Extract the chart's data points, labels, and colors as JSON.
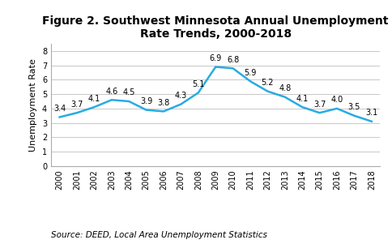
{
  "title": "Figure 2. Southwest Minnesota Annual Unemployment\nRate Trends, 2000-2018",
  "ylabel": "Unemployment Rate",
  "source": "Source: DEED, Local Area Unemployment Statistics",
  "years": [
    2000,
    2001,
    2002,
    2003,
    2004,
    2005,
    2006,
    2007,
    2008,
    2009,
    2010,
    2011,
    2012,
    2013,
    2014,
    2015,
    2016,
    2017,
    2018
  ],
  "values": [
    3.4,
    3.7,
    4.1,
    4.6,
    4.5,
    3.9,
    3.8,
    4.3,
    5.1,
    6.9,
    6.8,
    5.9,
    5.2,
    4.8,
    4.1,
    3.7,
    4.0,
    3.5,
    3.1
  ],
  "line_color": "#29abe2",
  "line_width": 1.8,
  "ylim": [
    0,
    8.5
  ],
  "yticks": [
    0,
    1,
    2,
    3,
    4,
    5,
    6,
    7,
    8
  ],
  "background_color": "#ffffff",
  "grid_color": "#c8c8c8",
  "title_fontsize": 10,
  "label_fontsize": 8,
  "tick_fontsize": 7,
  "annotation_fontsize": 7,
  "source_fontsize": 7.5
}
